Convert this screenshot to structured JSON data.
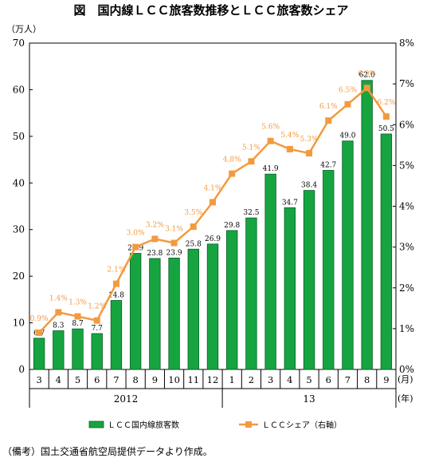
{
  "title": "図　国内線ＬＣＣ旅客数推移とＬＣＣ旅客数シェア",
  "note": "（備考）国土交通省航空局提供データより作成。",
  "colors": {
    "bar": "#16a441",
    "bar_edge": "#0b5f28",
    "line": "#f39a3f"
  },
  "chart_data": {
    "type": "bar",
    "left_unit": "（万人）",
    "x_unit_month": "(月)",
    "x_unit_year": "(年)",
    "categories": [
      "3",
      "4",
      "5",
      "6",
      "7",
      "8",
      "9",
      "10",
      "11",
      "12",
      "1",
      "2",
      "3",
      "4",
      "5",
      "6",
      "7",
      "8",
      "9"
    ],
    "year_groups": [
      {
        "label": "2012",
        "start": 0,
        "end": 10
      },
      {
        "label": "13",
        "start": 10,
        "end": 19
      }
    ],
    "ylim_left": [
      0,
      70
    ],
    "yticks_left": [
      "0",
      "10",
      "20",
      "30",
      "40",
      "50",
      "60",
      "70"
    ],
    "ylim_right": [
      0,
      8
    ],
    "yticks_right": [
      "0%",
      "1%",
      "2%",
      "3%",
      "4%",
      "5%",
      "6%",
      "7%",
      "8%"
    ],
    "series": [
      {
        "name": "ＬＣＣ国内線旅客数",
        "type": "bar",
        "axis": "left",
        "values": [
          6.7,
          8.3,
          8.7,
          7.7,
          14.8,
          24.9,
          23.8,
          23.9,
          25.8,
          26.9,
          29.8,
          32.5,
          41.9,
          34.7,
          38.4,
          42.7,
          49.0,
          62.0,
          50.5
        ],
        "labels": [
          "6.7",
          "8.3",
          "8.7",
          "7.7",
          "14.8",
          "24.9",
          "23.8",
          "23.9",
          "25.8",
          "26.9",
          "29.8",
          "32.5",
          "41.9",
          "34.7",
          "38.4",
          "42.7",
          "49.0",
          "62.0",
          "50.5"
        ]
      },
      {
        "name": "ＬＣＣシェア（右軸）",
        "type": "line",
        "axis": "right",
        "values": [
          0.9,
          1.4,
          1.3,
          1.2,
          2.1,
          3.0,
          3.2,
          3.1,
          3.5,
          4.1,
          4.8,
          5.1,
          5.6,
          5.4,
          5.3,
          6.1,
          6.5,
          6.9,
          6.2
        ],
        "labels": [
          "0.9%",
          "1.4%",
          "1.3%",
          "1.2%",
          "2.1%",
          "3.0%",
          "3.2%",
          "3.1%",
          "3.5%",
          "4.1%",
          "4.8%",
          "5.1%",
          "5.6%",
          "5.4%",
          "5.3%",
          "6.1%",
          "6.5%",
          "6.9%",
          "6.2%"
        ]
      }
    ],
    "grid": false,
    "legend": "bottom"
  }
}
